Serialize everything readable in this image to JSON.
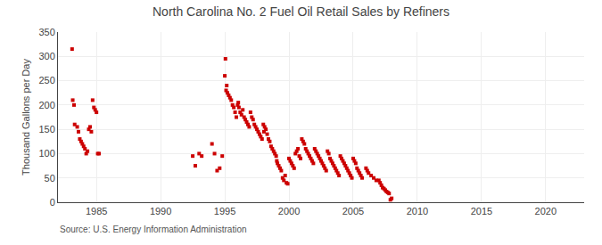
{
  "chart_data": {
    "type": "scatter",
    "title": "North Carolina No. 2 Fuel Oil Retail Sales by Refiners",
    "ylabel": "Thousand Gallons per Day",
    "annotations": [
      "Source: U.S. Energy Information Administration"
    ],
    "color": "#cc0000",
    "marker": "square",
    "grid": true,
    "xlim": [
      1982,
      2023
    ],
    "ylim": [
      0,
      350
    ],
    "xticks": [
      1985,
      1990,
      1995,
      2000,
      2005,
      2010,
      2015,
      2020
    ],
    "yticks": [
      0,
      50,
      100,
      150,
      200,
      250,
      300,
      350
    ],
    "x": [
      1983.1,
      1983.3,
      1983.5,
      1983.6,
      1983.7,
      1983.8,
      1983.9,
      1984.0,
      1984.1,
      1984.2,
      1984.3,
      1984.4,
      1984.5,
      1984.6,
      1984.7,
      1984.8,
      1984.9,
      1985.0,
      1985.1,
      1985.2,
      1983.15,
      1983.25,
      1992.5,
      1992.7,
      1993.0,
      1993.2,
      1994.0,
      1994.2,
      1994.4,
      1994.6,
      1994.8,
      1995.0,
      1995.05,
      1995.1,
      1995.15,
      1995.2,
      1995.3,
      1995.4,
      1995.5,
      1995.6,
      1995.7,
      1995.8,
      1995.9,
      1996.0,
      1996.05,
      1996.1,
      1996.2,
      1996.3,
      1996.4,
      1996.5,
      1996.6,
      1996.7,
      1996.8,
      1996.9,
      1997.0,
      1997.1,
      1997.2,
      1997.3,
      1997.4,
      1997.5,
      1997.6,
      1997.7,
      1997.8,
      1997.9,
      1998.0,
      1998.05,
      1998.1,
      1998.2,
      1998.3,
      1998.4,
      1998.5,
      1998.6,
      1998.7,
      1998.8,
      1998.9,
      1999.0,
      1999.05,
      1999.1,
      1999.2,
      1999.3,
      1999.4,
      1999.5,
      1999.6,
      1999.7,
      1999.8,
      1999.9,
      2000.0,
      2000.1,
      2000.2,
      2000.3,
      2000.4,
      2000.5,
      2000.6,
      2000.7,
      2000.8,
      2000.9,
      2001.0,
      2001.1,
      2001.2,
      2001.3,
      2001.4,
      2001.5,
      2001.6,
      2001.7,
      2001.8,
      2001.9,
      2002.0,
      2002.1,
      2002.2,
      2002.3,
      2002.4,
      2002.5,
      2002.6,
      2002.7,
      2002.8,
      2002.9,
      2003.0,
      2003.1,
      2003.2,
      2003.3,
      2003.4,
      2003.5,
      2003.6,
      2003.7,
      2003.8,
      2003.9,
      2004.0,
      2004.1,
      2004.2,
      2004.3,
      2004.4,
      2004.5,
      2004.6,
      2004.7,
      2004.8,
      2004.9,
      2005.0,
      2005.1,
      2005.2,
      2005.3,
      2005.4,
      2005.5,
      2005.6,
      2005.7,
      2006.0,
      2006.1,
      2006.2,
      2006.4,
      2006.6,
      2006.8,
      2007.0,
      2007.1,
      2007.2,
      2007.3,
      2007.4,
      2007.5,
      2007.6,
      2007.7,
      2007.8,
      2007.9,
      2008.0
    ],
    "values": [
      315,
      160,
      155,
      145,
      130,
      125,
      120,
      115,
      110,
      100,
      105,
      150,
      155,
      145,
      210,
      195,
      190,
      185,
      100,
      100,
      210,
      200,
      95,
      75,
      100,
      95,
      120,
      100,
      65,
      70,
      95,
      260,
      295,
      230,
      240,
      225,
      220,
      215,
      210,
      200,
      195,
      185,
      175,
      200,
      205,
      195,
      185,
      180,
      190,
      175,
      170,
      165,
      160,
      155,
      185,
      175,
      170,
      160,
      155,
      150,
      145,
      140,
      135,
      130,
      160,
      145,
      155,
      150,
      140,
      130,
      125,
      115,
      110,
      105,
      100,
      95,
      85,
      80,
      75,
      70,
      65,
      50,
      45,
      55,
      40,
      38,
      90,
      85,
      80,
      75,
      70,
      100,
      105,
      110,
      95,
      90,
      130,
      125,
      120,
      110,
      105,
      100,
      95,
      90,
      85,
      80,
      110,
      105,
      100,
      95,
      90,
      85,
      80,
      75,
      70,
      65,
      105,
      100,
      90,
      85,
      80,
      75,
      70,
      65,
      60,
      55,
      95,
      90,
      85,
      80,
      75,
      70,
      65,
      60,
      55,
      50,
      90,
      85,
      80,
      70,
      65,
      60,
      55,
      50,
      70,
      65,
      60,
      55,
      50,
      45,
      45,
      40,
      35,
      30,
      28,
      25,
      22,
      20,
      18,
      5,
      8
    ]
  }
}
